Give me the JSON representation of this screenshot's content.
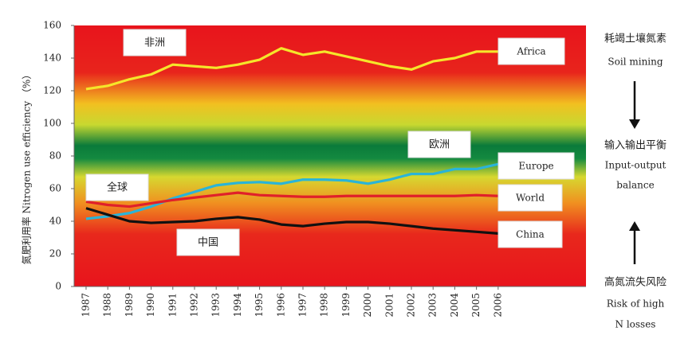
{
  "chart_data": {
    "type": "line",
    "y_label": "氮肥利用率 Nitrogen use efficiency （%）",
    "x": [
      1987,
      1988,
      1989,
      1990,
      1991,
      1992,
      1993,
      1994,
      1995,
      1996,
      1997,
      1998,
      1999,
      2000,
      2001,
      2002,
      2003,
      2004,
      2005,
      2006
    ],
    "xlim": [
      1986.45,
      2010.05
    ],
    "xticks": [
      1987,
      1988,
      1989,
      1990,
      1991,
      1992,
      1993,
      1994,
      1995,
      1996,
      1997,
      1998,
      1999,
      2000,
      2001,
      2002,
      2003,
      2004,
      2005,
      2006
    ],
    "ylim": [
      0,
      160
    ],
    "yticks": [
      0,
      20,
      40,
      60,
      80,
      100,
      120,
      140,
      160
    ],
    "series": [
      {
        "name": "Africa",
        "label_zh": "非洲",
        "color": "#f5e62a",
        "values": [
          121,
          123,
          127,
          130,
          136,
          135,
          134,
          136,
          139,
          146,
          142,
          144,
          141,
          138,
          135,
          133,
          138,
          140,
          144,
          144
        ]
      },
      {
        "name": "Europe",
        "label_zh": "欧洲",
        "color": "#2ab4d8",
        "values": [
          41.5,
          43,
          45,
          49,
          54,
          58,
          62,
          63.5,
          64,
          63,
          65.5,
          65.5,
          65,
          63,
          65.5,
          69,
          69,
          72,
          72,
          75
        ]
      },
      {
        "name": "World",
        "label_zh": "全球",
        "color": "#e0202a",
        "values": [
          52,
          50,
          49,
          51,
          53,
          54.5,
          56,
          57.5,
          56,
          55.5,
          55,
          55,
          55.5,
          55.5,
          55.5,
          55.5,
          55.5,
          55.5,
          56,
          55.5
        ]
      },
      {
        "name": "China",
        "label_zh": "中国",
        "color": "#111111",
        "values": [
          48,
          44,
          40,
          39,
          39.5,
          40,
          41.5,
          42.5,
          41,
          38,
          37,
          38.5,
          39.5,
          39.5,
          38.5,
          37,
          35.5,
          34.5,
          33.5,
          32.5
        ]
      }
    ],
    "annotations": [
      "耗竭土壤氮素",
      "Soil mining",
      "输入输出平衡",
      "Input-output",
      "balance",
      "高氮流失风险",
      "Risk of high",
      "N losses"
    ]
  }
}
